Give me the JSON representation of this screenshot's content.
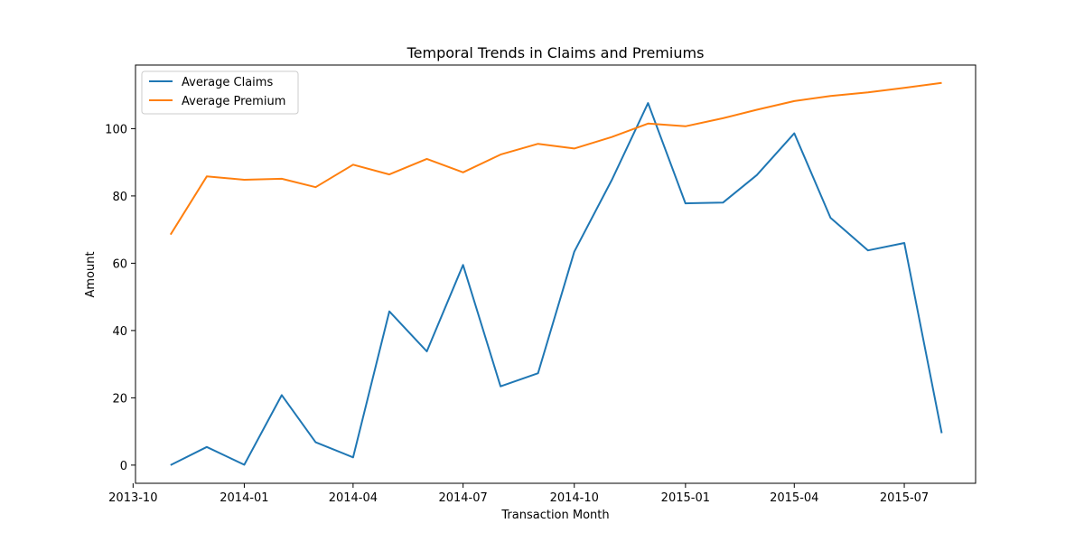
{
  "chart_data": {
    "type": "line",
    "title": "Temporal Trends in Claims and Premiums",
    "xlabel": "Transaction Month",
    "ylabel": "Amount",
    "legend_position": "top-left",
    "grid": false,
    "x": [
      "2013-11",
      "2013-12",
      "2014-01",
      "2014-02",
      "2014-03",
      "2014-04",
      "2014-05",
      "2014-06",
      "2014-07",
      "2014-08",
      "2014-09",
      "2014-10",
      "2014-11",
      "2014-12",
      "2015-01",
      "2015-02",
      "2015-03",
      "2015-04",
      "2015-05",
      "2015-06",
      "2015-07",
      "2015-08"
    ],
    "xlim": [
      "2013-10-03",
      "2015-08-29"
    ],
    "ylim": [
      -5.4,
      118.9
    ],
    "x_ticks": [
      "2013-10",
      "2014-01",
      "2014-04",
      "2014-07",
      "2014-10",
      "2015-01",
      "2015-04",
      "2015-07"
    ],
    "x_tick_dates": [
      "2013-10-01",
      "2014-01-01",
      "2014-04-01",
      "2014-07-01",
      "2014-10-01",
      "2015-01-01",
      "2015-04-01",
      "2015-07-01"
    ],
    "y_ticks": [
      0,
      20,
      40,
      60,
      80,
      100
    ],
    "series": [
      {
        "name": "Average Claims",
        "color": "#1f77b4",
        "values": [
          0.0,
          5.4,
          0.1,
          20.8,
          6.8,
          2.3,
          45.7,
          33.8,
          59.5,
          23.4,
          27.3,
          63.4,
          84.7,
          107.6,
          77.8,
          78.0,
          86.2,
          98.6,
          73.5,
          63.8,
          66.0,
          9.5
        ]
      },
      {
        "name": "Average Premium",
        "color": "#ff7f0e",
        "values": [
          68.5,
          85.8,
          84.8,
          85.1,
          82.6,
          89.3,
          86.4,
          91.0,
          87.0,
          92.3,
          95.5,
          94.1,
          97.5,
          101.5,
          100.7,
          103.1,
          105.6,
          108.2,
          109.7,
          110.8,
          112.1,
          113.6
        ]
      }
    ]
  }
}
